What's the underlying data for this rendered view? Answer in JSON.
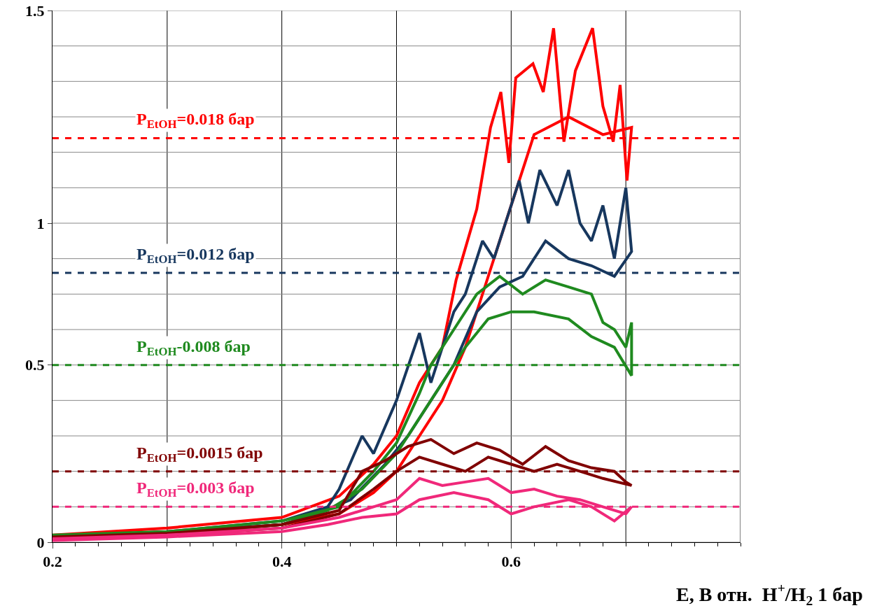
{
  "chart_data": {
    "type": "line",
    "xlabel": "E, В отн.  H$^{+}$/H$_{2}$ 1 бар",
    "xlim": [
      0.2,
      0.8
    ],
    "xticks": [
      0.2,
      0.4,
      0.6
    ],
    "ylim": [
      0,
      1.5
    ],
    "yticks": [
      0,
      0.5,
      {
        "value": 0.9,
        "label": "1"
      },
      1.5
    ],
    "grid": true,
    "line_style": "solid",
    "marker": "none",
    "series": [
      {
        "color": "#ff0000",
        "x": [
          0.2,
          0.3,
          0.4,
          0.45,
          0.48,
          0.5,
          0.52,
          0.54,
          0.552,
          0.57,
          0.582,
          0.591,
          0.598,
          0.604,
          0.619,
          0.628,
          0.637,
          0.646,
          0.656,
          0.671,
          0.68,
          0.689,
          0.695,
          0.701,
          0.705,
          0.68,
          0.65,
          0.62,
          0.6,
          0.58,
          0.56,
          0.54,
          0.52,
          0.5,
          0.48,
          0.45,
          0.4,
          0.3,
          0.2
        ],
        "values": [
          0.02,
          0.04,
          0.07,
          0.13,
          0.22,
          0.3,
          0.45,
          0.55,
          0.74,
          0.94,
          1.17,
          1.27,
          1.07,
          1.31,
          1.35,
          1.27,
          1.45,
          1.13,
          1.33,
          1.45,
          1.23,
          1.13,
          1.29,
          1.02,
          1.17,
          1.15,
          1.2,
          1.15,
          0.95,
          0.75,
          0.55,
          0.4,
          0.3,
          0.2,
          0.14,
          0.08,
          0.05,
          0.025,
          0.01
        ]
      },
      {
        "color": "#17375e",
        "x": [
          0.2,
          0.3,
          0.4,
          0.44,
          0.45,
          0.47,
          0.48,
          0.5,
          0.52,
          0.53,
          0.55,
          0.56,
          0.575,
          0.585,
          0.6,
          0.607,
          0.615,
          0.625,
          0.64,
          0.65,
          0.66,
          0.67,
          0.68,
          0.69,
          0.7,
          0.705,
          0.69,
          0.67,
          0.65,
          0.63,
          0.61,
          0.59,
          0.57,
          0.55,
          0.53,
          0.51,
          0.49,
          0.46,
          0.43,
          0.4,
          0.3,
          0.2
        ],
        "values": [
          0.015,
          0.03,
          0.06,
          0.1,
          0.15,
          0.3,
          0.25,
          0.4,
          0.59,
          0.45,
          0.65,
          0.7,
          0.85,
          0.8,
          0.95,
          1.02,
          0.9,
          1.05,
          0.95,
          1.05,
          0.9,
          0.85,
          0.95,
          0.8,
          1.0,
          0.82,
          0.75,
          0.78,
          0.8,
          0.85,
          0.75,
          0.72,
          0.65,
          0.5,
          0.4,
          0.3,
          0.22,
          0.12,
          0.08,
          0.05,
          0.025,
          0.01
        ]
      },
      {
        "color": "#1f8a1f",
        "x": [
          0.2,
          0.3,
          0.4,
          0.45,
          0.48,
          0.5,
          0.52,
          0.53,
          0.55,
          0.57,
          0.59,
          0.61,
          0.63,
          0.65,
          0.67,
          0.68,
          0.69,
          0.7,
          0.705,
          0.705,
          0.69,
          0.67,
          0.65,
          0.62,
          0.6,
          0.58,
          0.56,
          0.54,
          0.52,
          0.5,
          0.47,
          0.44,
          0.4,
          0.3,
          0.2
        ],
        "values": [
          0.02,
          0.03,
          0.06,
          0.1,
          0.2,
          0.28,
          0.42,
          0.5,
          0.6,
          0.7,
          0.75,
          0.7,
          0.74,
          0.72,
          0.7,
          0.62,
          0.6,
          0.55,
          0.62,
          0.47,
          0.55,
          0.58,
          0.63,
          0.65,
          0.65,
          0.63,
          0.55,
          0.45,
          0.35,
          0.25,
          0.15,
          0.09,
          0.05,
          0.025,
          0.015
        ]
      },
      {
        "color": "#800000",
        "x": [
          0.2,
          0.3,
          0.4,
          0.45,
          0.47,
          0.49,
          0.51,
          0.53,
          0.55,
          0.57,
          0.59,
          0.61,
          0.63,
          0.65,
          0.67,
          0.69,
          0.7,
          0.705,
          0.68,
          0.66,
          0.64,
          0.62,
          0.6,
          0.58,
          0.56,
          0.54,
          0.52,
          0.5,
          0.48,
          0.45,
          0.4,
          0.3,
          0.2
        ],
        "values": [
          0.015,
          0.025,
          0.05,
          0.09,
          0.2,
          0.23,
          0.27,
          0.29,
          0.25,
          0.28,
          0.26,
          0.22,
          0.27,
          0.23,
          0.21,
          0.2,
          0.17,
          0.16,
          0.18,
          0.2,
          0.22,
          0.2,
          0.22,
          0.24,
          0.2,
          0.22,
          0.24,
          0.2,
          0.15,
          0.08,
          0.04,
          0.02,
          0.01
        ]
      },
      {
        "color": "#f0287a",
        "x": [
          0.2,
          0.3,
          0.4,
          0.45,
          0.48,
          0.5,
          0.52,
          0.54,
          0.56,
          0.58,
          0.6,
          0.62,
          0.64,
          0.66,
          0.68,
          0.7,
          0.705,
          0.69,
          0.67,
          0.65,
          0.62,
          0.6,
          0.58,
          0.55,
          0.52,
          0.5,
          0.47,
          0.44,
          0.4,
          0.3,
          0.2
        ],
        "values": [
          0.01,
          0.02,
          0.04,
          0.07,
          0.1,
          0.12,
          0.18,
          0.16,
          0.17,
          0.18,
          0.14,
          0.15,
          0.13,
          0.12,
          0.1,
          0.08,
          0.1,
          0.06,
          0.1,
          0.12,
          0.1,
          0.08,
          0.12,
          0.14,
          0.12,
          0.08,
          0.07,
          0.05,
          0.03,
          0.015,
          0.005
        ]
      }
    ],
    "ref_lines": [
      {
        "axis": "y",
        "value": 1.14,
        "color": "#ff0000",
        "line_style": "dashed"
      },
      {
        "axis": "y",
        "value": 0.76,
        "color": "#17375e",
        "line_style": "dashed"
      },
      {
        "axis": "y",
        "value": 0.5,
        "color": "#1f8a1f",
        "line_style": "dashed"
      },
      {
        "axis": "y",
        "value": 0.2,
        "color": "#800000",
        "line_style": "dashed"
      },
      {
        "axis": "y",
        "value": 0.1,
        "color": "#f0287a",
        "line_style": "dashed"
      }
    ],
    "annotations": [
      "P$_{EtOH}$=0.018 бар",
      "P$_{EtOH}$=0.012 бар",
      "P$_{EtOH}$-0.008 бар",
      "P$_{EtOH}$=0.0015 бар",
      "P$_{EtOH}$=0.003 бар"
    ]
  }
}
